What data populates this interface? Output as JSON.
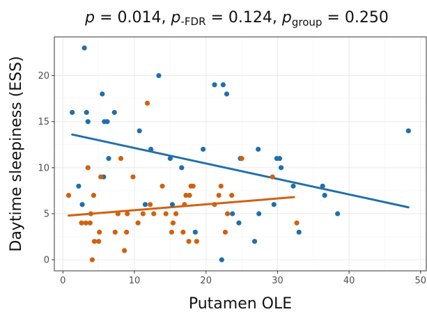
{
  "chart_data": {
    "type": "scatter",
    "title": {
      "p_symbol": "p",
      "p_value": " = 0.014, ",
      "pfdr_symbol": "p",
      "pfdr_sub": "-FDR",
      "pfdr_value": " = 0.124, ",
      "pgroup_symbol": "p",
      "pgroup_sub": "group",
      "pgroup_value": " = 0.250"
    },
    "xlabel": "Putamen OLE",
    "ylabel": "Daytime sleepiness (ESS)",
    "xlim": [
      -1.2,
      50.8
    ],
    "ylim": [
      -1.2,
      24.2
    ],
    "x_ticks": [
      0,
      10,
      20,
      30,
      40,
      50
    ],
    "y_ticks": [
      0,
      5,
      10,
      15,
      20
    ],
    "grid": true,
    "legend": "none",
    "series": [
      {
        "color": "#1f6fae",
        "points": [
          [
            1.3,
            16
          ],
          [
            2.2,
            8
          ],
          [
            2.7,
            6
          ],
          [
            3.0,
            23
          ],
          [
            3.3,
            16
          ],
          [
            3.5,
            15
          ],
          [
            5.5,
            18
          ],
          [
            5.7,
            9
          ],
          [
            5.8,
            15
          ],
          [
            6.2,
            15
          ],
          [
            6.4,
            11
          ],
          [
            7.2,
            16
          ],
          [
            10.7,
            14
          ],
          [
            11.5,
            6
          ],
          [
            12.3,
            12
          ],
          [
            13.4,
            20
          ],
          [
            15.0,
            11
          ],
          [
            15.3,
            6
          ],
          [
            16.6,
            10
          ],
          [
            18.5,
            3
          ],
          [
            19.6,
            12
          ],
          [
            21.2,
            19
          ],
          [
            22.2,
            0
          ],
          [
            22.4,
            19
          ],
          [
            22.9,
            18
          ],
          [
            23.7,
            5
          ],
          [
            24.6,
            4
          ],
          [
            24.8,
            11
          ],
          [
            26.8,
            2
          ],
          [
            27.3,
            12
          ],
          [
            27.4,
            5
          ],
          [
            29.5,
            6
          ],
          [
            29.9,
            11
          ],
          [
            30.3,
            11
          ],
          [
            30.5,
            10
          ],
          [
            32.2,
            8
          ],
          [
            33.0,
            3
          ],
          [
            36.3,
            8
          ],
          [
            36.6,
            7
          ],
          [
            38.4,
            5
          ],
          [
            48.3,
            14
          ]
        ],
        "trend": {
          "x": [
            1.3,
            48.3
          ],
          "y": [
            13.6,
            5.7
          ]
        }
      },
      {
        "color": "#d0620f",
        "points": [
          [
            0.8,
            7
          ],
          [
            2.6,
            4
          ],
          [
            3.2,
            4
          ],
          [
            3.5,
            10
          ],
          [
            3.8,
            4
          ],
          [
            3.9,
            5
          ],
          [
            4.1,
            0
          ],
          [
            4.3,
            7
          ],
          [
            4.4,
            2
          ],
          [
            5.0,
            2
          ],
          [
            5.1,
            3
          ],
          [
            5.3,
            9
          ],
          [
            7.3,
            3
          ],
          [
            7.7,
            5
          ],
          [
            8.1,
            11
          ],
          [
            8.6,
            1
          ],
          [
            8.9,
            3
          ],
          [
            9.0,
            5
          ],
          [
            9.8,
            9
          ],
          [
            10.5,
            4
          ],
          [
            11.2,
            5
          ],
          [
            11.8,
            17
          ],
          [
            12.2,
            6
          ],
          [
            12.7,
            5
          ],
          [
            13.9,
            8
          ],
          [
            14.4,
            5
          ],
          [
            15.2,
            3
          ],
          [
            15.4,
            4
          ],
          [
            15.8,
            5
          ],
          [
            16.8,
            3
          ],
          [
            17.0,
            6
          ],
          [
            17.2,
            7
          ],
          [
            17.6,
            2
          ],
          [
            17.7,
            7
          ],
          [
            17.9,
            8
          ],
          [
            18.2,
            8
          ],
          [
            18.7,
            2
          ],
          [
            21.2,
            6
          ],
          [
            21.8,
            7
          ],
          [
            22.1,
            8
          ],
          [
            22.7,
            3
          ],
          [
            23.0,
            5
          ],
          [
            23.6,
            7
          ],
          [
            25.0,
            11
          ],
          [
            29.3,
            9
          ],
          [
            32.7,
            4
          ]
        ],
        "trend": {
          "x": [
            0.8,
            32.3
          ],
          "y": [
            4.8,
            6.8
          ]
        }
      }
    ]
  }
}
